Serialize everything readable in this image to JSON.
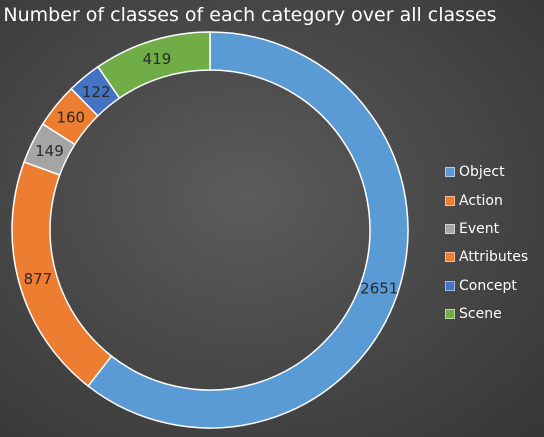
{
  "chart_data": {
    "type": "pie",
    "title": "Number of classes of each category over all classes",
    "donut": true,
    "categories": [
      "Object",
      "Action",
      "Event",
      "Attributes",
      "Concept",
      "Scene"
    ],
    "values": [
      2651,
      160,
      149,
      877,
      122,
      419
    ],
    "colors": [
      "#5b9bd5",
      "#ed7d31",
      "#a5a5a5",
      "#ed7d31",
      "#4472c4",
      "#70ad47"
    ],
    "label_order": [
      "Object",
      "Attributes",
      "Event",
      "Action",
      "Concept",
      "Scene"
    ],
    "label_values": [
      2651,
      877,
      149,
      160,
      122,
      419
    ],
    "label_colors": [
      "#5b9bd5",
      "#ed7d31",
      "#a5a5a5",
      "#ed7d31",
      "#4472c4",
      "#70ad47"
    ],
    "legend_position": "right",
    "grid": false
  }
}
